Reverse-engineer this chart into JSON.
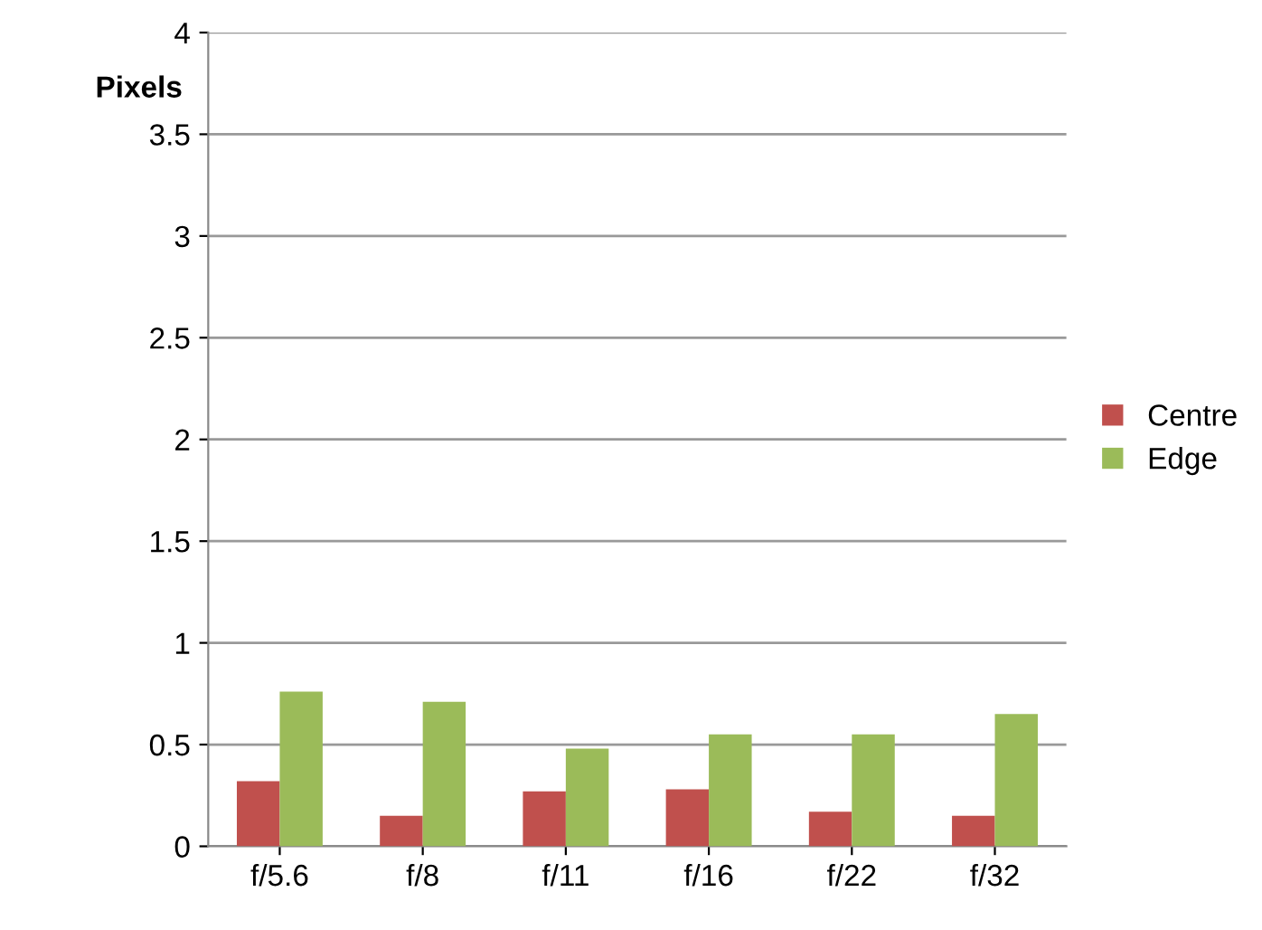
{
  "chart_data": {
    "type": "bar",
    "ylabel": "Pixels",
    "categories": [
      "f/5.6",
      "f/8",
      "f/11",
      "f/16",
      "f/22",
      "f/32"
    ],
    "series": [
      {
        "name": "Centre",
        "color": "#c0504d",
        "values": [
          0.32,
          0.15,
          0.27,
          0.28,
          0.17,
          0.15
        ]
      },
      {
        "name": "Edge",
        "color": "#9bbb59",
        "values": [
          0.76,
          0.71,
          0.48,
          0.55,
          0.55,
          0.65
        ]
      }
    ],
    "ylim": [
      0,
      4
    ],
    "yticks": [
      0,
      0.5,
      1,
      1.5,
      2,
      2.5,
      3,
      3.5,
      4
    ],
    "grid": "y",
    "legend": "right"
  }
}
